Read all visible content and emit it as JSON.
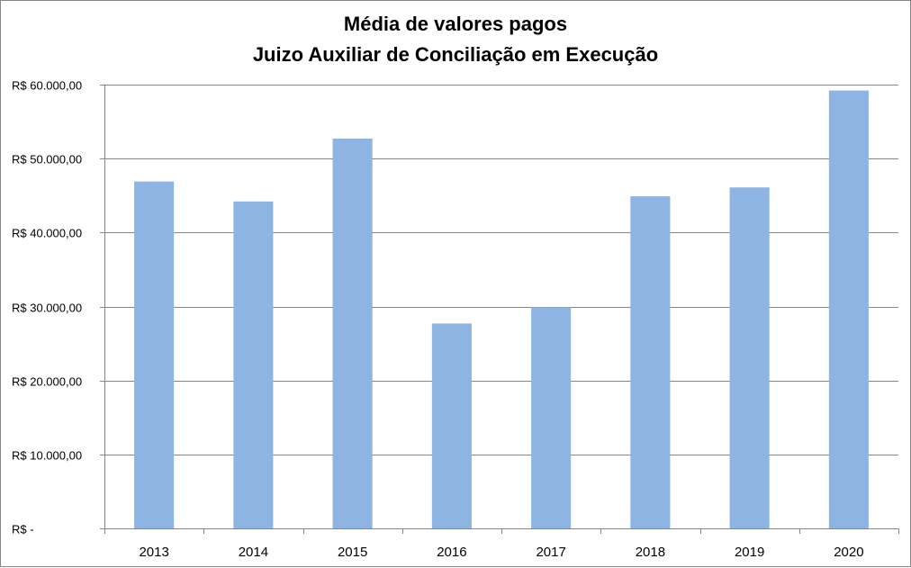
{
  "chart_data": {
    "type": "bar",
    "title": [
      "Média de valores pagos",
      "Juizo Auxiliar de Conciliação em Execução"
    ],
    "xlabel": "",
    "ylabel": "",
    "categories": [
      "2013",
      "2014",
      "2015",
      "2016",
      "2017",
      "2018",
      "2019",
      "2020"
    ],
    "values": [
      46900,
      44200,
      52700,
      27700,
      29900,
      44900,
      46100,
      59200
    ],
    "ylim": [
      0,
      60000
    ],
    "yticks": [
      0,
      10000,
      20000,
      30000,
      40000,
      50000,
      60000
    ],
    "ytick_labels": [
      "R$ -",
      "R$ 10.000,00",
      "R$ 20.000,00",
      "R$ 30.000,00",
      "R$ 40.000,00",
      "R$ 50.000,00",
      "R$ 60.000,00"
    ],
    "grid": true,
    "legend": "none",
    "colors": {
      "bar": "#8EB4E3",
      "grid": "#868686",
      "axis": "#868686"
    }
  }
}
